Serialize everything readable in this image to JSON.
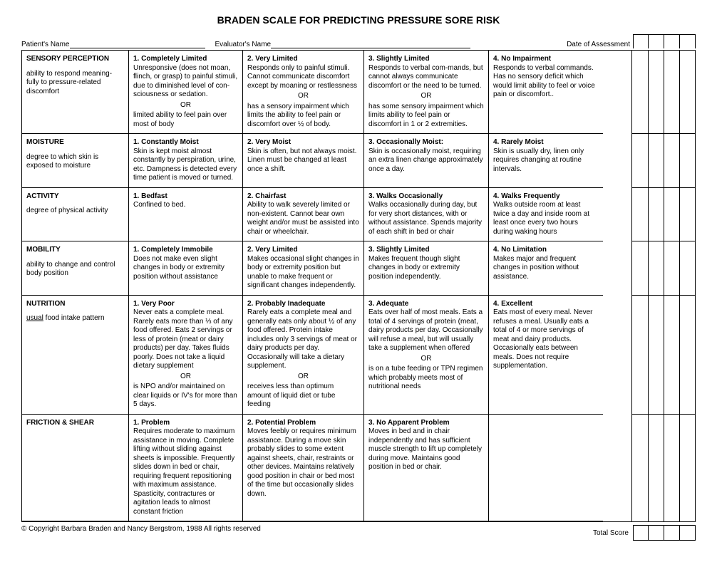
{
  "title": "BRADEN SCALE FOR PREDICTING PRESSURE SORE RISK",
  "labels": {
    "patient": "Patient's Name",
    "evaluator": "Evaluator's Name",
    "date": "Date of Assessment",
    "total": "Total  Score"
  },
  "copyright": "© Copyright Barbara Braden and Nancy Bergstrom, 1988   All rights reserved",
  "score_cols": 4,
  "rows": [
    {
      "cat_title": "SENSORY PERCEPTION",
      "cat_sub": "ability to respond meaning-fully to pressure-related discomfort",
      "opts": [
        {
          "title": "1. Completely Limited",
          "body": "Unresponsive (does not moan, flinch, or grasp) to painful stimuli, due to diminished level of con-sciousness or sedation.",
          "or": true,
          "body2": "limited ability to feel pain over most of body"
        },
        {
          "title": "2. Very Limited",
          "body": "Responds only to painful stimuli.  Cannot communicate discomfort except by moaning or restlessness",
          "or": true,
          "body2": "has a sensory impairment which limits the ability to feel pain or discomfort over ½ of body."
        },
        {
          "title": "3. Slightly Limited",
          "body": "Responds to verbal com-mands, but cannot always communicate discomfort or the need to be turned.",
          "or": true,
          "body2": "has some sensory impairment which limits ability to feel pain or discomfort in 1 or 2 extremities."
        },
        {
          "title": "4. No Impairment",
          "body": "Responds to verbal commands.  Has no sensory deficit which would limit ability to feel or voice pain or discomfort.."
        }
      ]
    },
    {
      "cat_title": "MOISTURE",
      "cat_sub": "degree to which skin is exposed to moisture",
      "opts": [
        {
          "title": "1. Constantly Moist",
          "body": "Skin is kept moist almost constantly by perspiration, urine, etc.  Dampness is detected every time patient is moved or turned."
        },
        {
          "title": "2.  Very Moist",
          "body": "Skin is often, but not always moist.  Linen must be changed at least once a shift."
        },
        {
          "title": "3.  Occasionally Moist:",
          "body": "Skin is occasionally moist, requiring an extra linen change approximately once a day."
        },
        {
          "title": "4.  Rarely Moist",
          "body": "Skin is usually dry, linen only requires changing at routine intervals."
        }
      ]
    },
    {
      "cat_title": "ACTIVITY",
      "cat_sub": "degree of physical activity",
      "opts": [
        {
          "title": "1.  Bedfast",
          "body": "Confined to bed."
        },
        {
          "title": "2.  Chairfast",
          "body": "Ability to walk severely limited or non-existent.  Cannot bear own weight and/or must be assisted into chair or wheelchair."
        },
        {
          "title": "3.  Walks Occasionally",
          "body": "Walks occasionally during day, but for very short distances, with or without assistance.  Spends majority of each shift in bed or chair"
        },
        {
          "title": "4.  Walks Frequently",
          "body": "Walks outside room at least twice a day and inside room at least once every two hours during waking hours"
        }
      ]
    },
    {
      "cat_title": "MOBILITY",
      "cat_sub": "ability to change and control body position",
      "opts": [
        {
          "title": "1. Completely Immobile",
          "body": "Does not make even slight changes in body or extremity position without assistance"
        },
        {
          "title": "2.  Very Limited",
          "body": "Makes occasional slight changes in body or extremity position but unable to make frequent or significant changes independently."
        },
        {
          "title": "3. Slightly Limited",
          "body": "Makes frequent though slight changes in body or extremity position independently."
        },
        {
          "title": "4.  No Limitation",
          "body": "Makes major and frequent changes in position without assistance."
        }
      ]
    },
    {
      "cat_title": "NUTRITION",
      "cat_sub_html": "<span class='underline'>usual</span> food intake pattern",
      "opts": [
        {
          "title": "1. Very Poor",
          "body": "Never eats a complete meal.  Rarely eats more than ⅓ of any food offered.  Eats 2 servings or less of protein (meat or dairy products) per day.  Takes fluids poorly.  Does not take a liquid dietary supplement",
          "or": true,
          "body2": "is NPO and/or maintained on clear liquids or IV's for more than 5 days."
        },
        {
          "title": "2. Probably Inadequate",
          "body": "Rarely eats a complete meal and generally eats only about ½ of any food offered.  Protein intake includes only 3 servings of meat or dairy products per day.  Occasionally will take a dietary supplement.",
          "or": true,
          "body2": "receives less than optimum amount of liquid diet or tube feeding"
        },
        {
          "title": "3.  Adequate",
          "body": "Eats over half of most meals.  Eats a total of 4 servings of protein (meat, dairy products per day.  Occasionally will refuse a meal, but will usually take a supplement when offered",
          "or": true,
          "body2": "is on a tube feeding or TPN regimen which probably meets most of nutritional needs"
        },
        {
          "title": "4.  Excellent",
          "body": "Eats most of every meal.  Never refuses a meal.  Usually eats a total of 4 or more servings of meat and dairy products.  Occasionally eats between meals.  Does not require supplementation."
        }
      ]
    },
    {
      "cat_title": "FRICTION & SHEAR",
      "cat_sub": "",
      "opts": [
        {
          "title": "1. Problem",
          "body": "Requires moderate to maximum assistance in moving.  Complete lifting without sliding against sheets is impossible.  Frequently slides down in bed or chair, requiring frequent repositioning with maximum assistance.  Spasticity, contractures or agitation leads to almost constant friction"
        },
        {
          "title": "2. Potential Problem",
          "body": "Moves feebly or requires minimum assistance.  During a move skin probably slides to some extent against sheets, chair, restraints or other devices.  Maintains relatively good position in chair or bed most of the time but occasionally slides down."
        },
        {
          "title": "3.  No Apparent Problem",
          "body": "Moves in bed and in chair independently and has sufficient muscle strength to lift up completely during move.  Maintains good position in bed or chair."
        },
        {
          "empty": true
        }
      ]
    }
  ]
}
